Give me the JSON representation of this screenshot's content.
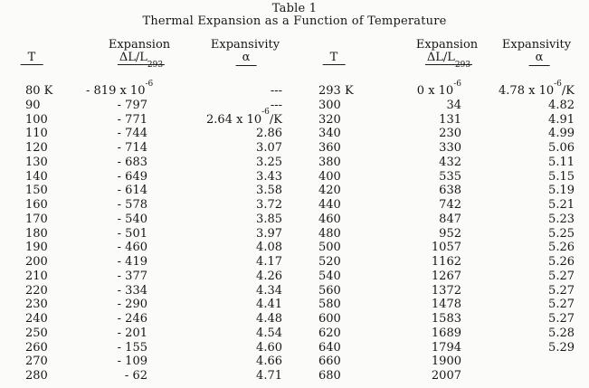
{
  "page": {
    "title_line1": "Table 1",
    "title_line2": "Thermal Expansion as a Function of Temperature"
  },
  "table": {
    "headers": {
      "t": "T",
      "expansion_label": "Expansion",
      "expansion_symbol": "ΔL/L_{293}",
      "expansivity_label": "Expansivity",
      "expansivity_symbol": "α"
    },
    "column_names": [
      "temperature-left",
      "expansion-left",
      "expansivity-left",
      "temperature-right",
      "expansion-right",
      "expansivity-right"
    ],
    "units": {
      "expansion_first_row_unit": "x 10^{-6}",
      "expansivity_first_value_unit": "x 10^{-6}/K",
      "missing_value_marker": "---"
    },
    "rows": [
      [
        "80 K",
        "- 819 x 10^{-6}",
        "---",
        "293 K",
        "0 x 10^{-6}",
        "4.78 x 10^{-6}/K"
      ],
      [
        "90",
        "- 797",
        "---",
        "300",
        "34",
        "4.82"
      ],
      [
        "100",
        "- 771",
        "2.64 x 10^{-6}/K",
        "320",
        "131",
        "4.91"
      ],
      [
        "110",
        "- 744",
        "2.86",
        "340",
        "230",
        "4.99"
      ],
      [
        "120",
        "- 714",
        "3.07",
        "360",
        "330",
        "5.06"
      ],
      [
        "130",
        "- 683",
        "3.25",
        "380",
        "432",
        "5.11"
      ],
      [
        "140",
        "- 649",
        "3.43",
        "400",
        "535",
        "5.15"
      ],
      [
        "150",
        "- 614",
        "3.58",
        "420",
        "638",
        "5.19"
      ],
      [
        "160",
        "- 578",
        "3.72",
        "440",
        "742",
        "5.21"
      ],
      [
        "170",
        "- 540",
        "3.85",
        "460",
        "847",
        "5.23"
      ],
      [
        "180",
        "- 501",
        "3.97",
        "480",
        "952",
        "5.25"
      ],
      [
        "190",
        "- 460",
        "4.08",
        "500",
        "1057",
        "5.26"
      ],
      [
        "200",
        "- 419",
        "4.17",
        "520",
        "1162",
        "5.26"
      ],
      [
        "210",
        "- 377",
        "4.26",
        "540",
        "1267",
        "5.27"
      ],
      [
        "220",
        "- 334",
        "4.34",
        "560",
        "1372",
        "5.27"
      ],
      [
        "230",
        "- 290",
        "4.41",
        "580",
        "1478",
        "5.27"
      ],
      [
        "240",
        "- 246",
        "4.48",
        "600",
        "1583",
        "5.27"
      ],
      [
        "250",
        "- 201",
        "4.54",
        "620",
        "1689",
        "5.28"
      ],
      [
        "260",
        "- 155",
        "4.60",
        "640",
        "1794",
        "5.29"
      ],
      [
        "270",
        "- 109",
        "4.66",
        "660",
        "1900",
        ""
      ],
      [
        "280",
        "- 62",
        "4.71",
        "680",
        "2007",
        ""
      ]
    ]
  }
}
